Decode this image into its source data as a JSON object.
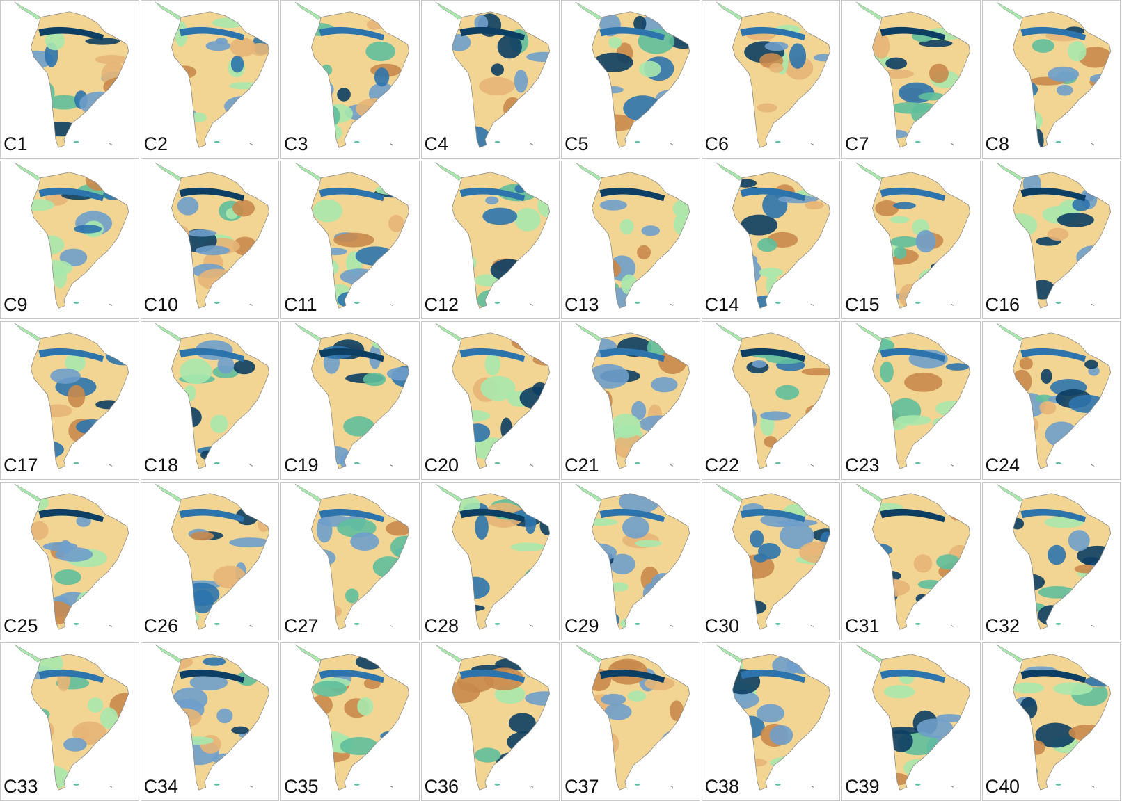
{
  "panels": [
    "C1",
    "C2",
    "C3",
    "C4",
    "C5",
    "C6",
    "C7",
    "C8",
    "C9",
    "C10",
    "C11",
    "C12",
    "C13",
    "C14",
    "C15",
    "C16",
    "C17",
    "C18",
    "C19",
    "C20",
    "C21",
    "C22",
    "C23",
    "C24",
    "C25",
    "C26",
    "C27",
    "C28",
    "C29",
    "C30",
    "C31",
    "C32",
    "C33",
    "C34",
    "C35",
    "C36",
    "C37",
    "C38",
    "C39",
    "C40"
  ]
}
